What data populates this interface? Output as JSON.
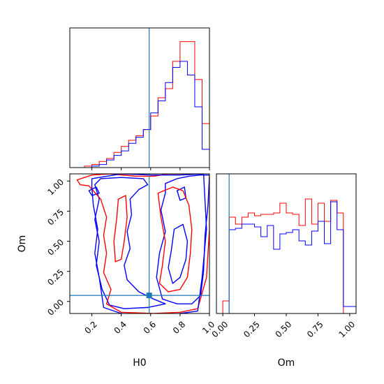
{
  "chart_data": {
    "type": "corner",
    "truth": {
      "H0": 0.59,
      "Om": 0.05,
      "color": "#1f77b4"
    },
    "series": [
      {
        "color": "#ff0000"
      },
      {
        "color": "#0000ff"
      }
    ],
    "axes": {
      "h0": {
        "label": "H0",
        "range": [
          0.05,
          1.0
        ],
        "ticks": [
          0.2,
          0.4,
          0.6,
          0.8,
          1.0
        ],
        "tick_labels": [
          "0.2",
          "0.4",
          "0.6",
          "0.8",
          "1.0"
        ]
      },
      "om": {
        "label": "Om",
        "range": [
          -0.1,
          1.06
        ],
        "ticks": [
          0.0,
          0.25,
          0.5,
          0.75,
          1.0
        ],
        "tick_labels": [
          "0.00",
          "0.25",
          "0.50",
          "0.75",
          "1.00"
        ]
      },
      "om_hist_x": {
        "label": "Om",
        "range": [
          -0.05,
          1.05
        ],
        "ticks": [
          0.0,
          0.25,
          0.5,
          0.75,
          1.0
        ],
        "tick_labels": [
          "0.00",
          "0.25",
          "0.50",
          "0.75",
          "1.00"
        ]
      }
    },
    "hist_h0": {
      "edges": [
        0.1,
        0.15,
        0.2,
        0.25,
        0.3,
        0.35,
        0.4,
        0.45,
        0.5,
        0.55,
        0.6,
        0.65,
        0.7,
        0.75,
        0.8,
        0.85,
        0.9,
        0.95,
        1.0
      ],
      "red": [
        0.0,
        0.01,
        0.02,
        0.04,
        0.06,
        0.1,
        0.14,
        0.18,
        0.21,
        0.25,
        0.34,
        0.46,
        0.52,
        0.7,
        0.83,
        0.83,
        0.58,
        0.29
      ],
      "blue": [
        0.0,
        0.0,
        0.01,
        0.02,
        0.05,
        0.08,
        0.11,
        0.16,
        0.2,
        0.25,
        0.36,
        0.44,
        0.56,
        0.66,
        0.7,
        0.61,
        0.4,
        0.12
      ],
      "ymax": 0.92
    },
    "hist_om": {
      "edges": [
        -0.05,
        0.0,
        0.05,
        0.1,
        0.15,
        0.2,
        0.25,
        0.3,
        0.35,
        0.4,
        0.45,
        0.5,
        0.55,
        0.6,
        0.65,
        0.7,
        0.75,
        0.8,
        0.85,
        0.9,
        0.95,
        1.0,
        1.05
      ],
      "red": [
        0.0,
        0.09,
        0.69,
        0.64,
        0.69,
        0.72,
        0.7,
        0.71,
        0.71,
        0.72,
        0.79,
        0.72,
        0.71,
        0.63,
        0.82,
        0.64,
        0.79,
        0.66,
        0.81,
        0.72,
        0.0,
        0.0
      ],
      "blue": [
        0.0,
        0.0,
        0.6,
        0.61,
        0.64,
        0.64,
        0.62,
        0.55,
        0.63,
        0.46,
        0.57,
        0.58,
        0.6,
        0.52,
        0.49,
        0.59,
        0.66,
        0.5,
        0.8,
        0.6,
        0.05,
        0.05
      ],
      "ymax": 1.0
    },
    "contours": [
      {
        "series": 1,
        "points": [
          [
            0.26,
            1.02
          ],
          [
            0.4,
            1.03
          ],
          [
            0.55,
            1.02
          ],
          [
            0.58,
            0.97
          ],
          [
            0.52,
            0.93
          ],
          [
            0.46,
            0.85
          ],
          [
            0.47,
            0.72
          ],
          [
            0.44,
            0.58
          ],
          [
            0.46,
            0.44
          ],
          [
            0.42,
            0.3
          ],
          [
            0.44,
            0.18
          ],
          [
            0.52,
            0.08
          ],
          [
            0.62,
            0.02
          ],
          [
            0.7,
            -0.02
          ],
          [
            0.58,
            -0.05
          ],
          [
            0.42,
            -0.06
          ],
          [
            0.32,
            -0.03
          ],
          [
            0.27,
            0.1
          ],
          [
            0.23,
            0.3
          ],
          [
            0.25,
            0.5
          ],
          [
            0.22,
            0.68
          ],
          [
            0.25,
            0.85
          ],
          [
            0.22,
            0.97
          ]
        ]
      },
      {
        "series": 1,
        "points": [
          [
            0.7,
            0.98
          ],
          [
            0.78,
            1.02
          ],
          [
            0.86,
            1.04
          ],
          [
            0.94,
            1.05
          ],
          [
            1.0,
            1.05
          ],
          [
            0.99,
            0.8
          ],
          [
            0.97,
            0.55
          ],
          [
            0.96,
            0.25
          ],
          [
            0.94,
            0.05
          ],
          [
            0.88,
            -0.02
          ],
          [
            0.78,
            -0.02
          ],
          [
            0.68,
            0.02
          ],
          [
            0.64,
            0.2
          ],
          [
            0.66,
            0.4
          ],
          [
            0.7,
            0.58
          ],
          [
            0.67,
            0.76
          ],
          [
            0.7,
            0.9
          ]
        ]
      },
      {
        "series": 1,
        "points": [
          [
            0.76,
            0.6
          ],
          [
            0.82,
            0.64
          ],
          [
            0.85,
            0.5
          ],
          [
            0.84,
            0.35
          ],
          [
            0.8,
            0.2
          ],
          [
            0.75,
            0.15
          ],
          [
            0.72,
            0.28
          ],
          [
            0.74,
            0.42
          ]
        ]
      },
      {
        "series": 1,
        "points": [
          [
            0.78,
            0.92
          ],
          [
            0.83,
            0.95
          ],
          [
            0.84,
            0.86
          ],
          [
            0.8,
            0.84
          ]
        ]
      },
      {
        "series": 1,
        "points": [
          [
            0.18,
            0.92
          ],
          [
            0.23,
            0.95
          ],
          [
            0.25,
            0.9
          ],
          [
            0.2,
            0.88
          ]
        ]
      },
      {
        "series": 0,
        "points": [
          [
            0.1,
            1.01
          ],
          [
            0.2,
            1.05
          ],
          [
            0.32,
            1.06
          ],
          [
            0.5,
            1.04
          ],
          [
            0.62,
            1.04
          ],
          [
            0.72,
            1.06
          ],
          [
            0.86,
            1.06
          ],
          [
            1.0,
            1.07
          ],
          [
            1.0,
            0.6
          ],
          [
            0.98,
            0.2
          ],
          [
            0.92,
            -0.06
          ],
          [
            0.8,
            -0.09
          ],
          [
            0.62,
            -0.1
          ],
          [
            0.4,
            -0.09
          ],
          [
            0.3,
            -0.02
          ],
          [
            0.33,
            0.1
          ],
          [
            0.28,
            0.24
          ],
          [
            0.3,
            0.4
          ],
          [
            0.28,
            0.55
          ],
          [
            0.3,
            0.7
          ],
          [
            0.26,
            0.85
          ],
          [
            0.18,
            0.96
          ],
          [
            0.12,
            0.97
          ]
        ]
      },
      {
        "series": 1,
        "points": [
          [
            0.2,
            1.02
          ],
          [
            0.4,
            1.06
          ],
          [
            0.6,
            1.05
          ],
          [
            0.8,
            1.05
          ],
          [
            0.96,
            1.06
          ],
          [
            0.98,
            0.6
          ],
          [
            0.95,
            0.2
          ],
          [
            0.92,
            -0.08
          ],
          [
            0.8,
            -0.1
          ],
          [
            0.62,
            -0.11
          ],
          [
            0.4,
            -0.1
          ],
          [
            0.28,
            -0.05
          ],
          [
            0.25,
            0.2
          ],
          [
            0.22,
            0.4
          ],
          [
            0.24,
            0.6
          ],
          [
            0.21,
            0.8
          ],
          [
            0.2,
            0.95
          ]
        ]
      },
      {
        "series": 0,
        "points": [
          [
            0.65,
            0.9
          ],
          [
            0.75,
            0.95
          ],
          [
            0.82,
            0.92
          ],
          [
            0.86,
            0.8
          ],
          [
            0.88,
            0.6
          ],
          [
            0.87,
            0.4
          ],
          [
            0.85,
            0.2
          ],
          [
            0.8,
            0.1
          ],
          [
            0.72,
            0.08
          ],
          [
            0.66,
            0.15
          ],
          [
            0.68,
            0.3
          ],
          [
            0.7,
            0.5
          ],
          [
            0.67,
            0.7
          ]
        ]
      },
      {
        "series": 0,
        "points": [
          [
            0.38,
            0.85
          ],
          [
            0.43,
            0.88
          ],
          [
            0.44,
            0.7
          ],
          [
            0.42,
            0.5
          ],
          [
            0.4,
            0.35
          ],
          [
            0.36,
            0.33
          ],
          [
            0.35,
            0.5
          ],
          [
            0.37,
            0.7
          ]
        ]
      }
    ]
  }
}
